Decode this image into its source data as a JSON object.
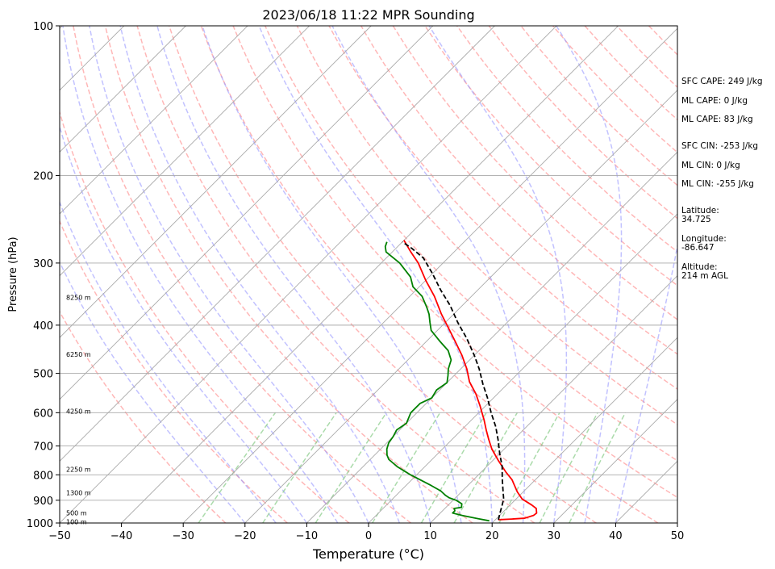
{
  "chart_data": {
    "type": "line",
    "title": "2023/06/18 11:22 MPR Sounding",
    "xlabel": "Temperature (°C)",
    "ylabel": "Pressure (hPa)",
    "xlim": [
      -50,
      50
    ],
    "ylim": [
      1000,
      100
    ],
    "y_scale": "log",
    "skew": "skew-T",
    "x_ticks": [
      "−50",
      "−40",
      "−30",
      "−20",
      "−10",
      "0",
      "10",
      "20",
      "30",
      "40",
      "50"
    ],
    "y_ticks": [
      "100",
      "200",
      "300",
      "400",
      "500",
      "600",
      "700",
      "800",
      "900",
      "1000"
    ],
    "grid": true,
    "series": [
      {
        "color": "#ff0000",
        "style": "solid",
        "points": [
          [
            20.5,
            985
          ],
          [
            22.5,
            982
          ],
          [
            24.5,
            978
          ],
          [
            25.5,
            965
          ],
          [
            25.6,
            955
          ],
          [
            24.8,
            935
          ],
          [
            23.5,
            920
          ],
          [
            21.0,
            895
          ],
          [
            19.0,
            865
          ],
          [
            16.2,
            818
          ],
          [
            14.0,
            790
          ],
          [
            11.0,
            750
          ],
          [
            8.0,
            710
          ],
          [
            6.0,
            680
          ],
          [
            4.0,
            650
          ],
          [
            2.0,
            620
          ],
          [
            -1.0,
            580
          ],
          [
            -3.5,
            550
          ],
          [
            -6.5,
            520
          ],
          [
            -9.0,
            490
          ],
          [
            -12.0,
            460
          ],
          [
            -15.5,
            430
          ],
          [
            -18.0,
            410
          ],
          [
            -22.0,
            380
          ],
          [
            -26.0,
            350
          ],
          [
            -30.0,
            325
          ],
          [
            -34.0,
            300
          ],
          [
            -37.0,
            285
          ],
          [
            -40.0,
            270
          ]
        ]
      },
      {
        "color": "#008000",
        "style": "solid",
        "points": [
          [
            19.2,
            990
          ],
          [
            17.0,
            980
          ],
          [
            14.0,
            966
          ],
          [
            12.0,
            955
          ],
          [
            12.0,
            945
          ],
          [
            11.5,
            935
          ],
          [
            12.5,
            930
          ],
          [
            12.0,
            915
          ],
          [
            10.5,
            900
          ],
          [
            9.0,
            890
          ],
          [
            8.0,
            880
          ],
          [
            6.5,
            862
          ],
          [
            4.0,
            840
          ],
          [
            -1.0,
            800
          ],
          [
            -4.5,
            770
          ],
          [
            -7.0,
            745
          ],
          [
            -8.0,
            730
          ],
          [
            -9.0,
            710
          ],
          [
            -9.7,
            690
          ],
          [
            -10.0,
            670
          ],
          [
            -10.5,
            650
          ],
          [
            -10.0,
            630
          ],
          [
            -11.0,
            600
          ],
          [
            -11.0,
            575
          ],
          [
            -10.0,
            560
          ],
          [
            -10.5,
            540
          ],
          [
            -10.0,
            522
          ],
          [
            -11.0,
            505
          ],
          [
            -12.0,
            490
          ],
          [
            -13.0,
            470
          ],
          [
            -15.0,
            450
          ],
          [
            -18.0,
            430
          ],
          [
            -21.0,
            410
          ],
          [
            -22.5,
            395
          ],
          [
            -24.0,
            380
          ],
          [
            -25.5,
            368
          ],
          [
            -28.0,
            350
          ],
          [
            -31.0,
            335
          ],
          [
            -33.0,
            320
          ],
          [
            -37.0,
            300
          ],
          [
            -41.0,
            285
          ],
          [
            -42.0,
            278
          ],
          [
            -42.5,
            272
          ]
        ]
      },
      {
        "color": "#000000",
        "style": "dashed",
        "points": [
          [
            20.5,
            985
          ],
          [
            19.8,
            960
          ],
          [
            19.0,
            930
          ],
          [
            18.0,
            895
          ],
          [
            16.5,
            860
          ],
          [
            14.5,
            815
          ],
          [
            12.5,
            770
          ],
          [
            10.0,
            725
          ],
          [
            7.5,
            680
          ],
          [
            5.0,
            640
          ],
          [
            2.0,
            600
          ],
          [
            -1.0,
            560
          ],
          [
            -4.0,
            525
          ],
          [
            -7.0,
            490
          ],
          [
            -10.0,
            460
          ],
          [
            -14.0,
            425
          ],
          [
            -18.0,
            395
          ],
          [
            -22.0,
            365
          ],
          [
            -26.0,
            340
          ],
          [
            -30.0,
            315
          ],
          [
            -34.0,
            293
          ],
          [
            -37.5,
            280
          ],
          [
            -40.0,
            272
          ]
        ]
      }
    ],
    "stats": [
      "SFC CAPE: 249 J/kg",
      "ML CAPE: 0 J/kg",
      "ML CAPE: 83 J/kg",
      "SFC CIN: -253 J/kg",
      "ML CIN: 0 J/kg",
      "ML CIN: -255 J/kg",
      "Latitude:",
      "34.725",
      "Longitude:",
      "-86.647",
      "Altitude:",
      "214 m AGL"
    ],
    "height_labels": [
      {
        "text": "8250 m",
        "p": 352
      },
      {
        "text": "6250 m",
        "p": 458
      },
      {
        "text": "4250 m",
        "p": 596
      },
      {
        "text": "2250 m",
        "p": 780
      },
      {
        "text": "1300 m",
        "p": 870
      },
      {
        "text": "500 m",
        "p": 955
      },
      {
        "text": "100 m",
        "p": 995
      }
    ],
    "colors": {
      "dry_adiabat": "#ff9999",
      "moist_adiabat": "#9999ff",
      "mixing_ratio": "#88cc88",
      "isotherm": "#aaaaaa",
      "temperature": "#ff0000",
      "dewpoint": "#008000",
      "parcel": "#000000"
    }
  }
}
